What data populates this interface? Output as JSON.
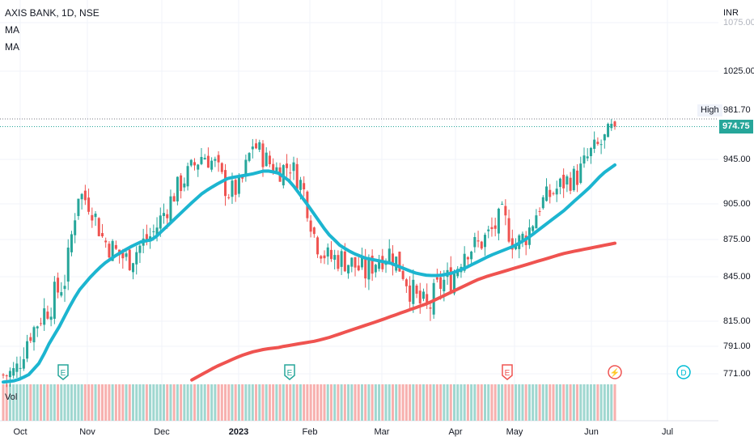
{
  "header": {
    "symbol_line": "AXIS BANK, 1D, NSE",
    "indicator_1": "MA",
    "indicator_2": "MA"
  },
  "volume_pane": {
    "label": "Vol"
  },
  "price_scale": {
    "currency": "INR",
    "ticks": [
      {
        "label": "1075.00",
        "faded": true
      },
      {
        "label": "1025.00"
      },
      {
        "label": "945.00"
      },
      {
        "label": "905.00"
      },
      {
        "label": "875.00"
      },
      {
        "label": "845.00"
      },
      {
        "label": "815.00"
      },
      {
        "label": "791.00"
      },
      {
        "label": "771.00"
      }
    ],
    "high_label": "High",
    "high_value": "981.70",
    "last_price": "974.75"
  },
  "time_scale": {
    "ticks": [
      {
        "label": "Oct"
      },
      {
        "label": "Nov"
      },
      {
        "label": "Dec"
      },
      {
        "label": "2023",
        "bold": true
      },
      {
        "label": "Feb"
      },
      {
        "label": "Mar"
      },
      {
        "label": "Apr"
      },
      {
        "label": "May"
      },
      {
        "label": "Jun"
      },
      {
        "label": "Jul"
      }
    ]
  },
  "event_markers": [
    {
      "letter": "E",
      "type": "earnings",
      "color": "#26a69a"
    },
    {
      "letter": "E",
      "type": "earnings",
      "color": "#26a69a"
    },
    {
      "letter": "E",
      "type": "earnings",
      "color": "#ef5350"
    },
    {
      "letter": "⚡",
      "type": "split",
      "color": "#ef5350"
    },
    {
      "letter": "D",
      "type": "dividend",
      "color": "#00bcd4"
    }
  ],
  "colors": {
    "up": "#26a69a",
    "down": "#ef5350",
    "ma_fast": "#1cb5d0",
    "ma_slow": "#ef5350",
    "volume_up": "#9fd7d0",
    "volume_down": "#f7b0ae"
  },
  "chart_data": {
    "type": "candlestick",
    "symbol": "AXIS BANK",
    "interval": "1D",
    "exchange": "NSE",
    "currency": "INR",
    "ylim": [
      761,
      1080
    ],
    "last_close": 974.75,
    "high_line": 981.7,
    "x_months": [
      "Oct",
      "Nov",
      "Dec",
      "2023",
      "Feb",
      "Mar",
      "Apr",
      "May",
      "Jun",
      "Jul"
    ],
    "weekly_closes_approx": [
      770,
      772,
      800,
      818,
      830,
      845,
      915,
      905,
      875,
      865,
      858,
      870,
      880,
      900,
      920,
      935,
      950,
      940,
      915,
      920,
      960,
      945,
      935,
      940,
      920,
      875,
      860,
      860,
      855,
      848,
      860,
      865,
      850,
      830,
      822,
      840,
      845,
      868,
      870,
      880,
      895,
      870,
      880,
      905,
      915,
      925,
      930,
      950,
      960,
      975
    ],
    "series": [
      {
        "name": "MA",
        "values_weekly_approx": [
          765,
          766,
          770,
          780,
          800,
          820,
          835,
          845,
          855,
          862,
          868,
          873,
          875,
          885,
          895,
          905,
          915,
          922,
          928,
          930,
          932,
          935,
          933,
          925,
          910,
          895,
          880,
          870,
          864,
          860,
          858,
          856,
          852,
          848,
          846,
          846,
          848,
          852,
          857,
          862,
          866,
          870,
          876,
          884,
          892,
          900,
          910,
          920,
          932,
          940
        ]
      },
      {
        "name": "MA",
        "values_weekly_approx": [
          null,
          null,
          null,
          null,
          null,
          null,
          null,
          null,
          null,
          null,
          null,
          null,
          null,
          null,
          null,
          766,
          771,
          776,
          780,
          784,
          787,
          789,
          790,
          792,
          794,
          796,
          799,
          803,
          807,
          811,
          815,
          818,
          821,
          824,
          827,
          831,
          835,
          839,
          843,
          846,
          849,
          852,
          855,
          858,
          861,
          864,
          866,
          868,
          870,
          872
        ]
      }
    ]
  }
}
